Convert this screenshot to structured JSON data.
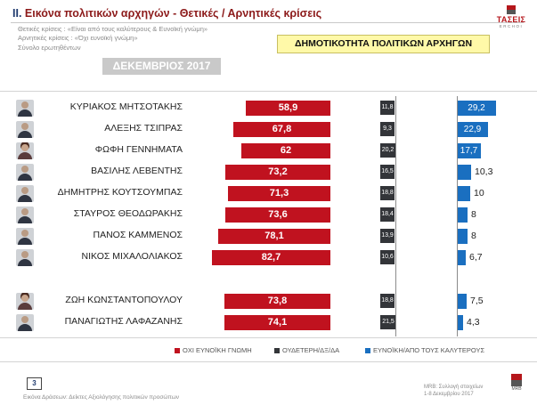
{
  "header": {
    "number": "II.",
    "title": "Εικόνα πολιτικών αρχηγών  - Θετικές / Αρνητικές κρίσεις",
    "meta": [
      "Θετικές κρίσεις : «Είναι από τους καλύτερους & Ευνοϊκή γνώμη»",
      "Αρνητικές κρίσεις : «Όχι ευνοϊκή γνώμη»",
      "Σύνολο ερωτηθέντων"
    ]
  },
  "logo_top": {
    "mark": "ΤΑΣΕΙΣ",
    "sub": "ERCHOI"
  },
  "banner": "ΔΗΜΟΤΙΚΟΤΗΤΑ ΠΟΛΙΤΙΚΩΝ ΑΡΧΗΓΩΝ",
  "month": "ΔΕΚΕΜΒΡΙΟΣ 2017",
  "colors": {
    "negative": "#c0121f",
    "neutral": "#333539",
    "positive": "#1a6fc0",
    "banner_bg": "#fff9a8"
  },
  "chart_data": {
    "type": "bar",
    "title": "ΔΗΜΟΤΙΚΟΤΗΤΑ ΠΟΛΙΤΙΚΩΝ ΑΡΧΗΓΩΝ",
    "subtitle": "ΔΕΚΕΜΒΡΙΟΣ 2017",
    "orientation": "horizontal",
    "categories": [
      "ΚΥΡΙΑΚΟΣ ΜΗΤΣΟΤΑΚΗΣ",
      "ΑΛΕΞΗΣ ΤΣΙΠΡΑΣ",
      "ΦΩΦΗ ΓΕΝΝΗΜΑΤΑ",
      "ΒΑΣΙΛΗΣ ΛΕΒΕΝΤΗΣ",
      "ΔΗΜΗΤΡΗΣ ΚΟΥΤΣΟΥΜΠΑΣ",
      "ΣΤΑΥΡΟΣ ΘΕΟΔΩΡΑΚΗΣ",
      "ΠΑΝΟΣ ΚΑΜΜΕΝΟΣ",
      "ΝΙΚΟΣ ΜΙΧΑΛΟΛΙΑΚΟΣ",
      "ΖΩΗ ΚΩΝΣΤΑΝΤΟΠΟΥΛΟΥ",
      "ΠΑΝΑΓΙΩΤΗΣ ΛΑΦΑΖΑΝΗΣ"
    ],
    "series": [
      {
        "name": "ΟΧΙ ΕΥΝΟΪΚΗ ΓΝΩΜΗ",
        "values": [
          58.9,
          67.8,
          62,
          73.2,
          71.3,
          73.6,
          78.1,
          82.7,
          73.8,
          74.1
        ],
        "labels": [
          "58,9",
          "67,8",
          "62",
          "73,2",
          "71,3",
          "73,6",
          "78,1",
          "82,7",
          "73,8",
          "74,1"
        ]
      },
      {
        "name": "ΟΥΔΕΤΕΡΗ/ΔΞ/ΔΑ",
        "values": [
          11.8,
          9.3,
          20.2,
          16.5,
          18.8,
          18.4,
          13.9,
          10.6,
          18.8,
          21.5
        ],
        "labels": [
          "11,8",
          "9,3",
          "20,2",
          "16,5",
          "18,8",
          "18,4",
          "13,9",
          "10,6",
          "18,8",
          "21,5"
        ]
      },
      {
        "name": "ΕΥΝΟΪΚΗ/ΑΠΟ ΤΟΥΣ ΚΑΛΥΤΕΡΟΥΣ",
        "values": [
          29.2,
          22.9,
          17.7,
          10.3,
          10,
          8,
          8,
          6.7,
          7.5,
          4.3
        ],
        "labels": [
          "29,2",
          "22,9",
          "17,7",
          "10,3",
          "10",
          "8",
          "8",
          "6,7",
          "7,5",
          "4,3"
        ]
      }
    ],
    "legend_position": "bottom",
    "grid": false
  },
  "footer": {
    "page": "3",
    "source": "Εικόνα Δράσεων: Δείκτες Αξιολόγησης πολιτικών προσώπων",
    "note_line1": "MRB: Συλλογή στοιχείων",
    "note_line2": "1-8 Δεκεμβρίου 2017",
    "logo": "MRB"
  }
}
